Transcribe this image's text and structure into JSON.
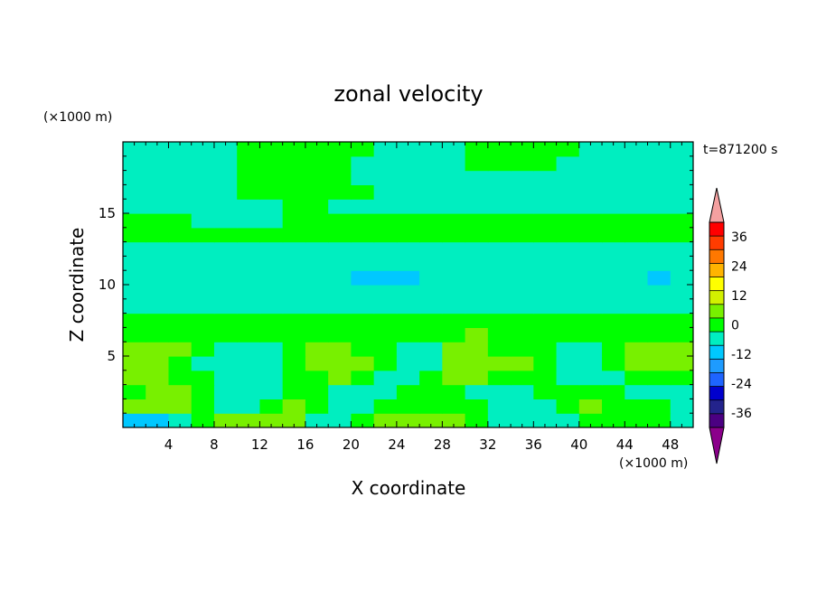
{
  "chart_data": {
    "type": "heatmap",
    "title": "zonal velocity",
    "time_label": "t=871200 s",
    "xlabel": "X coordinate",
    "ylabel": "Z coordinate",
    "x_unit": "(×1000 m)",
    "y_unit": "(×1000 m)",
    "xlim": [
      0,
      50
    ],
    "ylim": [
      0,
      20
    ],
    "x_ticks": [
      4,
      8,
      12,
      16,
      20,
      24,
      28,
      32,
      36,
      40,
      44,
      48
    ],
    "y_ticks": [
      5,
      10,
      15
    ],
    "grid": false,
    "colorbar": {
      "ticks": [
        36,
        24,
        12,
        0,
        -12,
        -24,
        -36
      ],
      "levels": [
        -42,
        -36,
        -30,
        -24,
        -18,
        -12,
        -6,
        0,
        6,
        12,
        18,
        24,
        30,
        36,
        42
      ],
      "colors": [
        "#4b0082",
        "#23238c",
        "#0000cd",
        "#1e64ff",
        "#1e9bff",
        "#00c8ff",
        "#00eec0",
        "#00ff00",
        "#78f000",
        "#d2f000",
        "#ffff00",
        "#ffb400",
        "#ff7800",
        "#ff3c00",
        "#ff0000"
      ],
      "over_color": "#f4a0a0",
      "under_color": "#8b008b",
      "extend": "both"
    },
    "field": {
      "description_values_units": "m/s",
      "rows_bottom_to_top_z_km": [
        0.5,
        1.5,
        2.5,
        3.5,
        4.5,
        5.5,
        6.5,
        7.5,
        8.5,
        9.5,
        10.5,
        11.5,
        12.5,
        13.5,
        14.5,
        15.5,
        16.5,
        17.5,
        18.5,
        19.5
      ],
      "cols_x_km": [
        1,
        3,
        5,
        7,
        9,
        11,
        13,
        15,
        17,
        19,
        21,
        23,
        25,
        27,
        29,
        31,
        33,
        35,
        37,
        39,
        41,
        43,
        45,
        47,
        49
      ],
      "values": [
        [
          -10,
          -8,
          -4,
          2,
          6,
          8,
          10,
          6,
          -4,
          -6,
          2,
          6,
          8,
          10,
          6,
          2,
          -2,
          -4,
          -4,
          -2,
          0,
          2,
          2,
          0,
          -2
        ],
        [
          8,
          9,
          6,
          2,
          -6,
          -4,
          2,
          6,
          2,
          -4,
          -2,
          2,
          4,
          4,
          2,
          0,
          -4,
          -6,
          -4,
          2,
          8,
          4,
          2,
          0,
          -2
        ],
        [
          4,
          6,
          8,
          4,
          -2,
          -6,
          -4,
          2,
          0,
          -4,
          -6,
          -2,
          2,
          4,
          0,
          -2,
          -6,
          -4,
          0,
          4,
          2,
          0,
          -2,
          -4,
          -2
        ],
        [
          8,
          6,
          2,
          0,
          -4,
          -6,
          -2,
          0,
          4,
          6,
          2,
          -4,
          -2,
          4,
          6,
          8,
          4,
          2,
          0,
          -2,
          -4,
          -2,
          2,
          4,
          2
        ],
        [
          10,
          8,
          4,
          -2,
          -4,
          -4,
          -6,
          0,
          6,
          8,
          6,
          2,
          -6,
          -2,
          8,
          9,
          8,
          6,
          2,
          -6,
          -4,
          0,
          6,
          8,
          6
        ],
        [
          7,
          8,
          6,
          4,
          -2,
          -4,
          -2,
          4,
          6,
          6,
          4,
          2,
          -4,
          -2,
          6,
          8,
          4,
          2,
          0,
          -2,
          -4,
          2,
          6,
          8,
          8
        ],
        [
          4,
          3,
          2,
          2,
          3,
          2,
          4,
          2,
          3,
          2,
          2,
          3,
          4,
          2,
          3,
          6,
          4,
          2,
          3,
          2,
          2,
          4,
          2,
          3,
          2
        ],
        [
          2,
          2,
          2,
          2,
          2,
          4,
          2,
          2,
          2,
          2,
          3,
          2,
          2,
          2,
          2,
          4,
          2,
          2,
          2,
          2,
          2,
          2,
          2,
          2,
          2
        ],
        [
          -1,
          -2,
          -2,
          -1,
          -2,
          -1,
          -1,
          -2,
          -2,
          -2,
          -1,
          -2,
          -2,
          -1,
          -2,
          -2,
          -1,
          -2,
          -2,
          -1,
          -2,
          -1,
          -2,
          -2,
          -1
        ],
        [
          -3,
          -4,
          -3,
          -3,
          -4,
          -4,
          -3,
          -3,
          -4,
          -5,
          -5,
          -4,
          -4,
          -3,
          -3,
          -4,
          -4,
          -3,
          -3,
          -4,
          -4,
          -3,
          -3,
          -4,
          -3
        ],
        [
          -4,
          -5,
          -4,
          -4,
          -4,
          -5,
          -5,
          -4,
          -4,
          -6,
          -7,
          -8,
          -7,
          -6,
          -5,
          -4,
          -4,
          -5,
          -4,
          -4,
          -5,
          -4,
          -6,
          -7,
          -5
        ],
        [
          -2,
          -3,
          -3,
          -2,
          -3,
          -3,
          -2,
          -3,
          -3,
          -3,
          -4,
          -4,
          -3,
          -3,
          -4,
          -3,
          -2,
          -3,
          -3,
          -2,
          -3,
          -3,
          -3,
          -2,
          -2
        ],
        [
          -1,
          -1,
          -2,
          -1,
          -1,
          -1,
          -2,
          -2,
          -2,
          -1,
          -1,
          -1,
          -2,
          -1,
          -2,
          -2,
          -1,
          -1,
          -1,
          -2,
          -1,
          -1,
          -2,
          -1,
          -1
        ],
        [
          1,
          1,
          1,
          2,
          2,
          1,
          1,
          2,
          2,
          1,
          1,
          1,
          1,
          1,
          1,
          2,
          1,
          1,
          1,
          2,
          1,
          1,
          1,
          1,
          1
        ],
        [
          2,
          2,
          1,
          -1,
          -2,
          -2,
          -1,
          1,
          1,
          2,
          2,
          1,
          1,
          2,
          2,
          2,
          1,
          1,
          1,
          2,
          2,
          2,
          1,
          1,
          1
        ],
        [
          -2,
          -1,
          -1,
          -2,
          -1,
          -1,
          -2,
          1,
          1,
          -1,
          -1,
          -2,
          -1,
          -1,
          -1,
          -1,
          -2,
          -2,
          -1,
          -1,
          -1,
          -2,
          -2,
          -1,
          -1
        ],
        [
          -2,
          -2,
          -1,
          -1,
          -1,
          1,
          1,
          1,
          1,
          1,
          1,
          -1,
          -1,
          -1,
          -1,
          -1,
          -1,
          -2,
          -2,
          -2,
          -2,
          -1,
          -1,
          -2,
          -2
        ],
        [
          -2,
          -2,
          -2,
          -1,
          -1,
          1,
          2,
          2,
          2,
          2,
          -1,
          -1,
          -2,
          -1,
          -1,
          -1,
          -2,
          -2,
          -2,
          -2,
          -2,
          -2,
          -2,
          -2,
          -2
        ],
        [
          -3,
          -2,
          -2,
          -1,
          -1,
          1,
          2,
          2,
          2,
          1,
          -1,
          -2,
          -1,
          -1,
          -1,
          1,
          1,
          1,
          1,
          -1,
          -2,
          -2,
          -1,
          -1,
          -2
        ],
        [
          -2,
          -2,
          -1,
          -1,
          -1,
          1,
          2,
          2,
          2,
          2,
          1,
          -1,
          -1,
          -2,
          -1,
          1,
          2,
          2,
          1,
          1,
          -1,
          -2,
          -2,
          -2,
          -2
        ]
      ]
    }
  }
}
